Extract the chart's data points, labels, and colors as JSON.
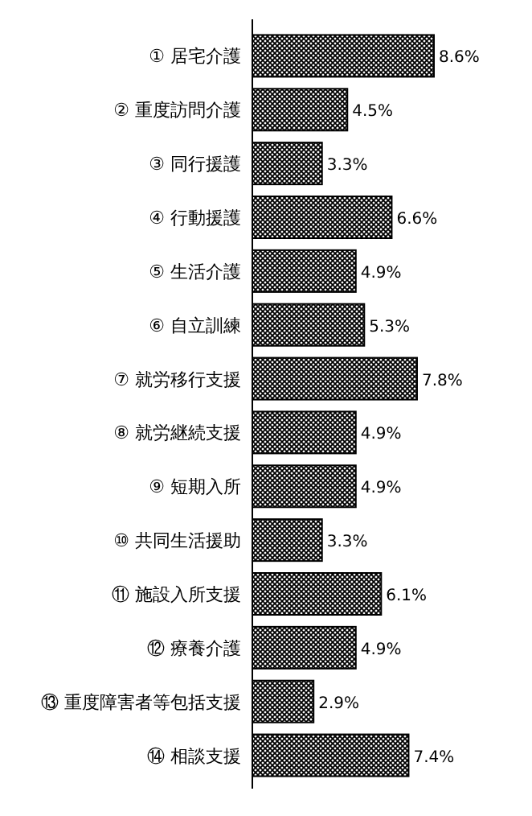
{
  "chart_data": {
    "type": "bar",
    "orientation": "horizontal",
    "color": "#000000",
    "categories": [
      "① 居宅介護",
      "② 重度訪問介護",
      "③ 同行援護",
      "④ 行動援護",
      "⑤ 生活介護",
      "⑥ 自立訓練",
      "⑦ 就労移行支援",
      "⑧ 就労継続支援",
      "⑨ 短期入所",
      "⑩ 共同生活援助",
      "⑪ 施設入所支援",
      "⑫ 療養介護",
      "⑬ 重度障害者等包括支援",
      "⑭ 相談支援"
    ],
    "values": [
      8.6,
      4.5,
      3.3,
      6.6,
      4.9,
      5.3,
      7.8,
      4.9,
      4.9,
      3.3,
      6.1,
      4.9,
      2.9,
      7.4
    ],
    "value_labels": [
      "8.6%",
      "4.5%",
      "3.3%",
      "6.6%",
      "4.9%",
      "5.3%",
      "7.8%",
      "4.9%",
      "4.9%",
      "3.3%",
      "6.1%",
      "4.9%",
      "2.9%",
      "7.4%"
    ]
  }
}
